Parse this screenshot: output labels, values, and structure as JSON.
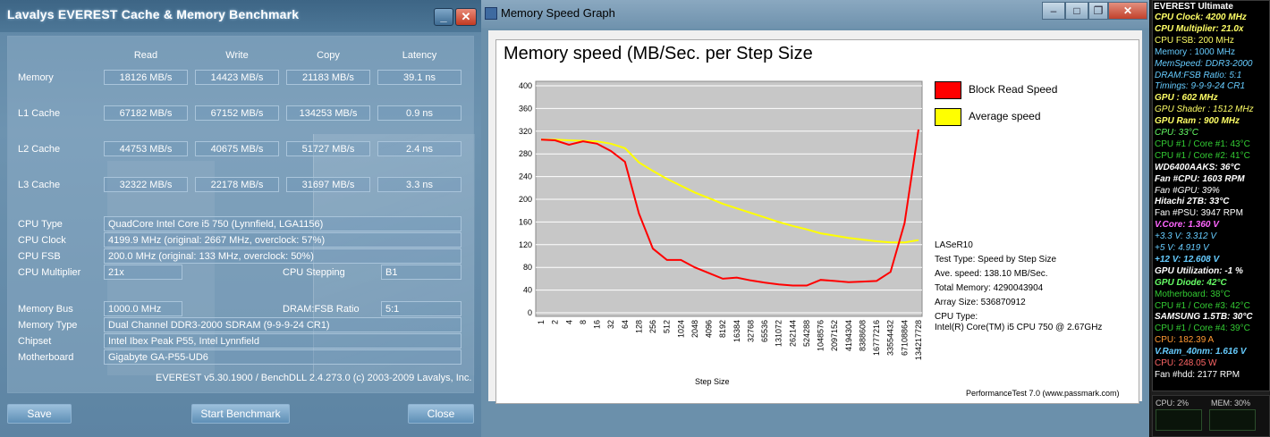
{
  "everest": {
    "title": "Lavalys EVEREST Cache & Memory Benchmark",
    "columns": [
      "Read",
      "Write",
      "Copy",
      "Latency"
    ],
    "rows": [
      {
        "label": "Memory",
        "values": [
          "18126 MB/s",
          "14423 MB/s",
          "21183 MB/s",
          "39.1 ns"
        ]
      },
      {
        "label": "L1 Cache",
        "values": [
          "67182 MB/s",
          "67152 MB/s",
          "134253 MB/s",
          "0.9 ns"
        ]
      },
      {
        "label": "L2 Cache",
        "values": [
          "44753 MB/s",
          "40675 MB/s",
          "51727 MB/s",
          "2.4 ns"
        ]
      },
      {
        "label": "L3 Cache",
        "values": [
          "32322 MB/s",
          "22178 MB/s",
          "31697 MB/s",
          "3.3 ns"
        ]
      }
    ],
    "info": {
      "cpu_type_label": "CPU Type",
      "cpu_type": "QuadCore Intel Core i5 750  (Lynnfield, LGA1156)",
      "cpu_clock_label": "CPU Clock",
      "cpu_clock": "4199.9 MHz  (original: 2667 MHz, overclock: 57%)",
      "cpu_fsb_label": "CPU FSB",
      "cpu_fsb": "200.0 MHz  (original: 133 MHz, overclock: 50%)",
      "cpu_mult_label": "CPU Multiplier",
      "cpu_mult": "21x",
      "cpu_step_label": "CPU Stepping",
      "cpu_step": "B1",
      "mem_bus_label": "Memory Bus",
      "mem_bus": "1000.0 MHz",
      "dram_fsb_label": "DRAM:FSB Ratio",
      "dram_fsb": "5:1",
      "mem_type_label": "Memory Type",
      "mem_type": "Dual Channel DDR3-2000 SDRAM  (9-9-9-24 CR1)",
      "chipset_label": "Chipset",
      "chipset": "Intel Ibex Peak P55, Intel Lynnfield",
      "mobo_label": "Motherboard",
      "mobo": "Gigabyte GA-P55-UD6"
    },
    "version": "EVEREST v5.30.1900 / BenchDLL 2.4.273.0  (c) 2003-2009 Lavalys, Inc.",
    "buttons": {
      "save": "Save",
      "start": "Start Benchmark",
      "close": "Close"
    },
    "window_buttons": {
      "minimize": "_",
      "close": "✕"
    }
  },
  "graph_window": {
    "title": "Memory Speed Graph",
    "buttons": {
      "minimize": "–",
      "maximize": "□",
      "restore": "❐",
      "close": "✕"
    },
    "footer": "PerformanceTest 7.0 (www.passmark.com)",
    "info_lines": [
      "LASeR10",
      "Test Type: Speed by Step Size",
      "Ave. speed: 138.10 MB/Sec.",
      "Total Memory: 4290043904",
      "Array Size: 536870912",
      "CPU Type:",
      "Intel(R) Core(TM) i5 CPU 750 @ 2.67GHz"
    ]
  },
  "chart_data": {
    "type": "line",
    "title": "Memory speed (MB/Sec. per Step Size",
    "xlabel": "Step Size",
    "ylabel": "",
    "ylim": [
      0,
      400
    ],
    "yticks": [
      0,
      40,
      80,
      120,
      160,
      200,
      240,
      280,
      320,
      360,
      400
    ],
    "legend_placement": "right",
    "grid": true,
    "categories": [
      "1",
      "2",
      "4",
      "8",
      "16",
      "32",
      "64",
      "128",
      "256",
      "512",
      "1024",
      "2048",
      "4096",
      "8192",
      "16384",
      "32768",
      "65536",
      "131072",
      "262144",
      "524288",
      "1048576",
      "2097152",
      "4194304",
      "8388608",
      "16777216",
      "33554432",
      "67108864",
      "134217728"
    ],
    "series": [
      {
        "name": "Block Read Speed",
        "color": "#ff0000",
        "values": [
          305,
          304,
          296,
          302,
          298,
          285,
          266,
          175,
          113,
          93,
          93,
          80,
          70,
          60,
          62,
          57,
          53,
          50,
          48,
          48,
          58,
          56,
          54,
          55,
          56,
          72,
          158,
          323
        ]
      },
      {
        "name": "Average speed",
        "color": "#ffff00",
        "values": [
          305,
          305,
          304,
          303,
          302,
          298,
          290,
          265,
          250,
          236,
          224,
          212,
          202,
          192,
          184,
          176,
          168,
          160,
          153,
          147,
          140,
          136,
          132,
          129,
          126,
          124,
          124,
          128
        ]
      }
    ]
  },
  "sidebar": {
    "title": "EVEREST Ultimate",
    "lines": [
      {
        "text": "CPU Clock: 4200 MHz",
        "color": "#ffff66",
        "style": "bi"
      },
      {
        "text": "CPU Multiplier: 21.0x",
        "color": "#ffff66",
        "style": "bi"
      },
      {
        "text": "CPU FSB: 200 MHz",
        "color": "#ffff66",
        "style": "n"
      },
      {
        "text": "Memory : 1000 MHz",
        "color": "#66ccff",
        "style": "n"
      },
      {
        "text": "MemSpeed: DDR3-2000",
        "color": "#66ccff",
        "style": "i"
      },
      {
        "text": "DRAM:FSB Ratio: 5:1",
        "color": "#66ccff",
        "style": "i"
      },
      {
        "text": "Timings: 9-9-9-24 CR1",
        "color": "#66ccff",
        "style": "i"
      },
      {
        "text": "GPU : 602 MHz",
        "color": "#ffff66",
        "style": "bi"
      },
      {
        "text": "GPU Shader : 1512 MHz",
        "color": "#ffff66",
        "style": "i"
      },
      {
        "text": "GPU Ram : 900 MHz",
        "color": "#ffff66",
        "style": "bi"
      },
      {
        "text": "CPU: 33°C",
        "color": "#66ff66",
        "style": "i"
      },
      {
        "text": "CPU #1 / Core #1: 43°C",
        "color": "#33cc33",
        "style": "n"
      },
      {
        "text": "CPU #1 / Core #2: 41°C",
        "color": "#33cc33",
        "style": "n"
      },
      {
        "text": "WD6400AAKS: 36°C",
        "color": "#ffffff",
        "style": "bi"
      },
      {
        "text": "Fan #CPU: 1603 RPM",
        "color": "#ffffff",
        "style": "bi"
      },
      {
        "text": "Fan #GPU: 39%",
        "color": "#ffffff",
        "style": "i"
      },
      {
        "text": "Hitachi 2TB: 33°C",
        "color": "#ffffff",
        "style": "bi"
      },
      {
        "text": "Fan #PSU: 3947 RPM",
        "color": "#ffffff",
        "style": "n"
      },
      {
        "text": "V.Core: 1.360 V",
        "color": "#ff66ff",
        "style": "bi"
      },
      {
        "text": "+3.3 V: 3.312 V",
        "color": "#66ccff",
        "style": "i"
      },
      {
        "text": "+5 V: 4.919 V",
        "color": "#66ccff",
        "style": "i"
      },
      {
        "text": "+12 V: 12.608 V",
        "color": "#66ccff",
        "style": "bi"
      },
      {
        "text": "GPU Utilization: -1 %",
        "color": "#ffffff",
        "style": "bi"
      },
      {
        "text": "GPU Diode: 42°C",
        "color": "#66ff66",
        "style": "bi"
      },
      {
        "text": "Motherboard: 38°C",
        "color": "#33cc33",
        "style": "n"
      },
      {
        "text": "CPU #1 / Core #3: 42°C",
        "color": "#33cc33",
        "style": "n"
      },
      {
        "text": "SAMSUNG 1.5TB: 30°C",
        "color": "#ffffff",
        "style": "bi"
      },
      {
        "text": "CPU #1 / Core #4: 39°C",
        "color": "#33cc33",
        "style": "n"
      },
      {
        "text": "CPU: 182.39 A",
        "color": "#ff9933",
        "style": "n"
      },
      {
        "text": "V.Ram_40nm: 1.616 V",
        "color": "#66ccff",
        "style": "bi"
      },
      {
        "text": "CPU: 248.05 W",
        "color": "#ff6666",
        "style": "n"
      },
      {
        "text": "Fan #hdd: 2177 RPM",
        "color": "#ffffff",
        "style": "n"
      }
    ],
    "cpu_usage": "CPU:   2%",
    "mem_usage": "MEM:  30%"
  }
}
